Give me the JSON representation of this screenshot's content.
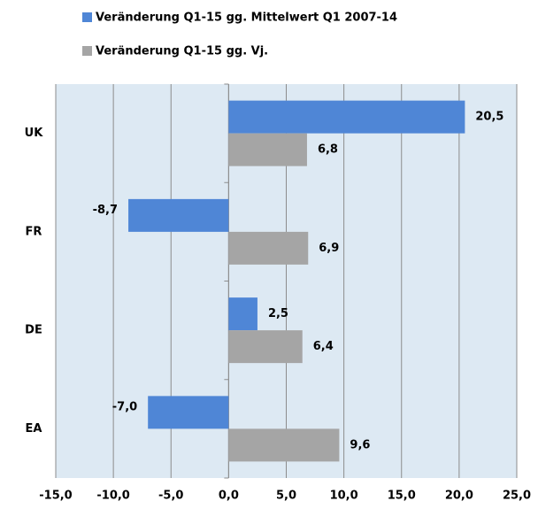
{
  "chart_data": {
    "type": "hbar",
    "categories": [
      "UK",
      "FR",
      "DE",
      "EA"
    ],
    "series": [
      {
        "name": "Veränderung Q1-15 gg. Mittelwert Q1 2007-14",
        "color": "#4f86d6",
        "values": [
          20.5,
          -8.7,
          2.5,
          -7.0
        ],
        "value_labels": [
          "20,5",
          "-8,7",
          "2,5",
          "-7,0"
        ]
      },
      {
        "name": "Veränderung Q1-15 gg. Vj.",
        "color": "#a5a5a5",
        "values": [
          6.8,
          6.9,
          6.4,
          9.6
        ],
        "value_labels": [
          "6,8",
          "6,9",
          "6,4",
          "9,6"
        ]
      }
    ],
    "xlim": [
      -15,
      25
    ],
    "xticks": [
      {
        "value": -15,
        "label": "-15,0"
      },
      {
        "value": -10,
        "label": "-10,0"
      },
      {
        "value": -5,
        "label": "-5,0"
      },
      {
        "value": 0,
        "label": "0,0"
      },
      {
        "value": 5,
        "label": "5,0"
      },
      {
        "value": 10,
        "label": "10,0"
      },
      {
        "value": 15,
        "label": "15,0"
      },
      {
        "value": 20,
        "label": "20,0"
      },
      {
        "value": 25,
        "label": "25,0"
      }
    ],
    "grid": true
  }
}
